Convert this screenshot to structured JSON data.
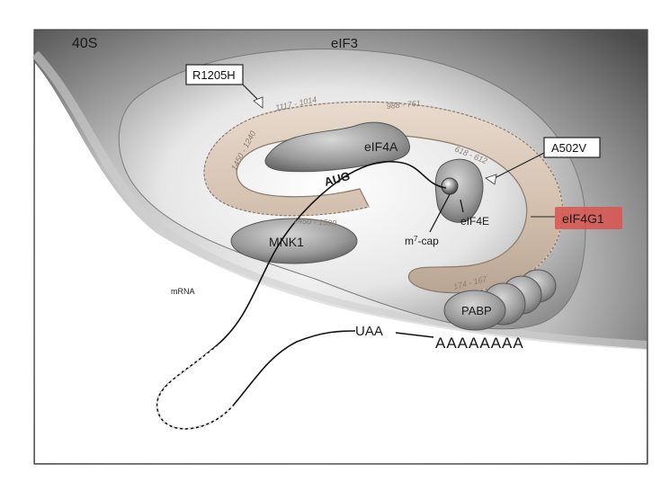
{
  "labels": {
    "ribosome": "40S",
    "eif3": "eIF3",
    "eif4a": "eIF4A",
    "eif4e": "eIF4E",
    "eif4g1": "eIF4G1",
    "mnk1": "MNK1",
    "pabp": "PABP",
    "mrna": "mRNA",
    "aug": "AUG",
    "uaa": "UAA",
    "polya": "AAAAAAAA",
    "cap_base": "m",
    "cap_sup": "7",
    "cap_tail": "-cap"
  },
  "mutations": {
    "r1205h": "R1205H",
    "a502v": "A502V"
  },
  "ranges": {
    "r1117_1014": "1117 - 1014",
    "r988_761": "988 - 761",
    "r1450_1240": "1450 - 1240",
    "r618_612": "618 - 612",
    "r1450_1599": "1450 - 1599",
    "r174_167": "174 - 167"
  },
  "colors": {
    "eif4g1_fill": "#d8c6b6",
    "eif4g1_label_bg": "#d9534f",
    "protein_gray": "#8c8c8c",
    "background_gray": "#9a9a9a"
  }
}
